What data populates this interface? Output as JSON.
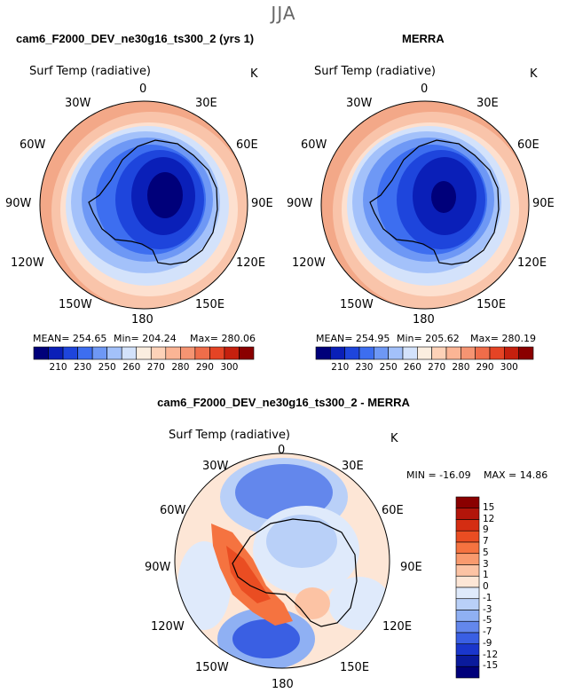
{
  "figure": {
    "season": "JJA"
  },
  "panels": [
    {
      "header": "cam6_F2000_DEV_ne30g16_ts300_2 (yrs 1)",
      "variable": "Surf Temp (radiative)",
      "units": "K",
      "stats": {
        "mean": "MEAN= 254.65",
        "min": "Min= 204.24",
        "max": "Max= 280.06"
      },
      "colorbar": {
        "ticks": [
          "210",
          "230",
          "250",
          "260",
          "270",
          "280",
          "290",
          "300"
        ],
        "colors": [
          "#00007a",
          "#0a1fb8",
          "#1e45dc",
          "#3d6ef0",
          "#6e98f5",
          "#a3c1fa",
          "#d3e2fb",
          "#fbeee0",
          "#fdd2b8",
          "#fbb595",
          "#f59472",
          "#ef6d4a",
          "#e54425",
          "#c5200e",
          "#8a0000"
        ]
      }
    },
    {
      "header": "MERRA",
      "variable": "Surf Temp (radiative)",
      "units": "K",
      "stats": {
        "mean": "MEAN= 254.95",
        "min": "Min= 205.62",
        "max": "Max= 280.19"
      },
      "colorbar": {
        "ticks": [
          "210",
          "230",
          "250",
          "260",
          "270",
          "280",
          "290",
          "300"
        ],
        "colors": [
          "#00007a",
          "#0a1fb8",
          "#1e45dc",
          "#3d6ef0",
          "#6e98f5",
          "#a3c1fa",
          "#d3e2fb",
          "#fbeee0",
          "#fdd2b8",
          "#fbb595",
          "#f59472",
          "#ef6d4a",
          "#e54425",
          "#c5200e",
          "#8a0000"
        ]
      }
    },
    {
      "header": "cam6_F2000_DEV_ne30g16_ts300_2 - MERRA",
      "variable": "Surf Temp (radiative)",
      "units": "K",
      "stats": {
        "min": "MIN = -16.09",
        "max": "MAX =  14.86"
      },
      "colorbar": {
        "ticks": [
          "15",
          "12",
          "9",
          "7",
          "5",
          "3",
          "1",
          "0",
          "-1",
          "-3",
          "-5",
          "-7",
          "-9",
          "-12",
          "-15"
        ],
        "colors": [
          "#8a0000",
          "#b3150a",
          "#d42d12",
          "#ea4d22",
          "#f57340",
          "#f99a6e",
          "#fcc3a4",
          "#fde6d6",
          "#dfeafb",
          "#b9d0f8",
          "#8fb0f3",
          "#6387ec",
          "#3a5fe3",
          "#1a36cc",
          "#0a1a9c",
          "#00007a"
        ]
      }
    }
  ],
  "longitude_labels": [
    "0",
    "30E",
    "60E",
    "90E",
    "120E",
    "150E",
    "180",
    "150W",
    "120W",
    "90W",
    "60W",
    "30W"
  ],
  "palette": {
    "polar_dark": "#1b2fa6",
    "polar_deep": "#0a1878",
    "sea_warm": "#f3a888",
    "sea_edge": "#f6b69a",
    "ice_edge": "#b7cdf6",
    "diff_red": "#e85a30"
  }
}
